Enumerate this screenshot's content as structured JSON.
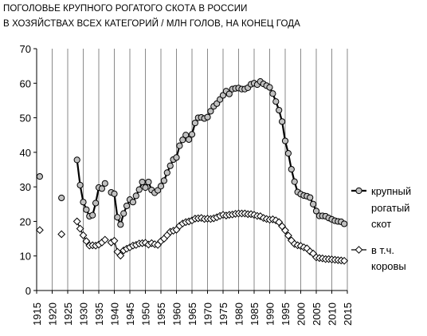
{
  "chart_data": {
    "type": "line",
    "title_lines": [
      "ПОГОЛОВЬЕ КРУПНОГО РОГАТОГО СКОТА В РОССИИ",
      "В ХОЗЯЙСТВАХ ВСЕХ  КАТЕГОРИЙ / МЛН ГОЛОВ, НА КОНЕЦ ГОДА"
    ],
    "xlabel": "",
    "ylabel": "",
    "xlim": [
      1915,
      2015
    ],
    "ylim": [
      0,
      70
    ],
    "x_ticks": [
      "1915",
      "1920",
      "1925",
      "1930",
      "1935",
      "1940",
      "1945",
      "1950",
      "1955",
      "1960",
      "1965",
      "1970",
      "1975",
      "1980",
      "1985",
      "1990",
      "1995",
      "2000",
      "2005",
      "2010",
      "2015"
    ],
    "y_ticks": [
      "0",
      "10",
      "20",
      "30",
      "40",
      "50",
      "60",
      "70"
    ],
    "grid": "vertical",
    "legend_position": "right",
    "series": [
      {
        "name_lines": [
          "крупный",
          "рогатый",
          "скот"
        ],
        "color": "#000000",
        "marker": "circle",
        "marker_fill": "#c0c0c0",
        "points": [
          [
            1916,
            33.0
          ],
          [
            1923,
            26.8
          ],
          [
            1928,
            37.8
          ],
          [
            1929,
            30.5
          ],
          [
            1930,
            25.6
          ],
          [
            1931,
            23.4
          ],
          [
            1932,
            21.5
          ],
          [
            1933,
            21.8
          ],
          [
            1934,
            25.3
          ],
          [
            1935,
            29.8
          ],
          [
            1936,
            29.5
          ],
          [
            1937,
            31.0
          ],
          [
            1939,
            28.4
          ],
          [
            1940,
            28.0
          ],
          [
            1941,
            21.2
          ],
          [
            1942,
            19.1
          ],
          [
            1943,
            22.3
          ],
          [
            1944,
            24.5
          ],
          [
            1945,
            26.3
          ],
          [
            1946,
            25.6
          ],
          [
            1947,
            27.4
          ],
          [
            1948,
            29.2
          ],
          [
            1949,
            31.4
          ],
          [
            1950,
            29.8
          ],
          [
            1951,
            31.4
          ],
          [
            1952,
            29.1
          ],
          [
            1953,
            28.3
          ],
          [
            1954,
            29.0
          ],
          [
            1955,
            30.2
          ],
          [
            1956,
            31.8
          ],
          [
            1957,
            34.1
          ],
          [
            1958,
            36.1
          ],
          [
            1959,
            37.9
          ],
          [
            1960,
            38.5
          ],
          [
            1961,
            41.9
          ],
          [
            1962,
            43.6
          ],
          [
            1963,
            45.0
          ],
          [
            1964,
            43.7
          ],
          [
            1965,
            45.2
          ],
          [
            1966,
            48.5
          ],
          [
            1967,
            50.0
          ],
          [
            1968,
            50.1
          ],
          [
            1969,
            49.8
          ],
          [
            1970,
            50.2
          ],
          [
            1971,
            51.9
          ],
          [
            1972,
            53.3
          ],
          [
            1973,
            54.1
          ],
          [
            1974,
            55.3
          ],
          [
            1975,
            56.5
          ],
          [
            1976,
            57.7
          ],
          [
            1977,
            56.9
          ],
          [
            1978,
            58.3
          ],
          [
            1979,
            58.5
          ],
          [
            1980,
            58.6
          ],
          [
            1981,
            58.3
          ],
          [
            1982,
            58.3
          ],
          [
            1983,
            58.7
          ],
          [
            1984,
            59.7
          ],
          [
            1985,
            60.0
          ],
          [
            1986,
            59.6
          ],
          [
            1987,
            60.5
          ],
          [
            1988,
            59.8
          ],
          [
            1989,
            59.3
          ],
          [
            1990,
            58.8
          ],
          [
            1991,
            57.0
          ],
          [
            1992,
            54.7
          ],
          [
            1993,
            52.2
          ],
          [
            1994,
            48.9
          ],
          [
            1995,
            43.3
          ],
          [
            1996,
            39.7
          ],
          [
            1997,
            35.1
          ],
          [
            1998,
            31.5
          ],
          [
            1999,
            28.5
          ],
          [
            2000,
            27.9
          ],
          [
            2001,
            27.5
          ],
          [
            2002,
            27.3
          ],
          [
            2003,
            26.9
          ],
          [
            2004,
            25.0
          ],
          [
            2005,
            23.0
          ],
          [
            2006,
            21.6
          ],
          [
            2007,
            21.6
          ],
          [
            2008,
            21.5
          ],
          [
            2009,
            21.0
          ],
          [
            2010,
            20.6
          ],
          [
            2011,
            20.2
          ],
          [
            2012,
            20.0
          ],
          [
            2013,
            19.9
          ],
          [
            2014,
            19.3
          ]
        ]
      },
      {
        "name_lines": [
          "в т.ч.",
          "коровы"
        ],
        "color": "#000000",
        "marker": "diamond",
        "marker_fill": "#ffffff",
        "points": [
          [
            1916,
            17.5
          ],
          [
            1923,
            16.3
          ],
          [
            1928,
            20.0
          ],
          [
            1929,
            17.9
          ],
          [
            1930,
            16.0
          ],
          [
            1931,
            14.3
          ],
          [
            1932,
            13.0
          ],
          [
            1933,
            13.1
          ],
          [
            1934,
            13.0
          ],
          [
            1935,
            13.3
          ],
          [
            1936,
            13.9
          ],
          [
            1937,
            14.7
          ],
          [
            1939,
            13.9
          ],
          [
            1940,
            14.4
          ],
          [
            1941,
            11.2
          ],
          [
            1942,
            10.1
          ],
          [
            1943,
            11.6
          ],
          [
            1944,
            12.1
          ],
          [
            1945,
            12.5
          ],
          [
            1946,
            13.0
          ],
          [
            1947,
            13.2
          ],
          [
            1948,
            13.6
          ],
          [
            1949,
            13.7
          ],
          [
            1950,
            13.8
          ],
          [
            1951,
            13.3
          ],
          [
            1952,
            13.7
          ],
          [
            1953,
            13.4
          ],
          [
            1954,
            13.2
          ],
          [
            1955,
            14.3
          ],
          [
            1956,
            15.0
          ],
          [
            1957,
            16.0
          ],
          [
            1958,
            17.0
          ],
          [
            1959,
            17.3
          ],
          [
            1960,
            17.6
          ],
          [
            1961,
            18.7
          ],
          [
            1962,
            19.4
          ],
          [
            1963,
            19.8
          ],
          [
            1964,
            20.0
          ],
          [
            1965,
            20.3
          ],
          [
            1966,
            20.8
          ],
          [
            1967,
            20.9
          ],
          [
            1968,
            21.0
          ],
          [
            1969,
            20.7
          ],
          [
            1970,
            20.8
          ],
          [
            1971,
            20.7
          ],
          [
            1972,
            20.9
          ],
          [
            1973,
            21.2
          ],
          [
            1974,
            21.6
          ],
          [
            1975,
            21.9
          ],
          [
            1976,
            21.7
          ],
          [
            1977,
            21.9
          ],
          [
            1978,
            22.0
          ],
          [
            1979,
            22.2
          ],
          [
            1980,
            22.3
          ],
          [
            1981,
            22.3
          ],
          [
            1982,
            22.3
          ],
          [
            1983,
            22.1
          ],
          [
            1984,
            22.1
          ],
          [
            1985,
            21.9
          ],
          [
            1986,
            21.6
          ],
          [
            1987,
            21.5
          ],
          [
            1988,
            21.0
          ],
          [
            1989,
            20.7
          ],
          [
            1990,
            20.5
          ],
          [
            1991,
            20.6
          ],
          [
            1992,
            20.3
          ],
          [
            1993,
            19.8
          ],
          [
            1994,
            18.6
          ],
          [
            1995,
            17.4
          ],
          [
            1996,
            15.9
          ],
          [
            1997,
            14.5
          ],
          [
            1998,
            13.5
          ],
          [
            1999,
            13.1
          ],
          [
            2000,
            12.9
          ],
          [
            2001,
            12.5
          ],
          [
            2002,
            12.2
          ],
          [
            2003,
            11.3
          ],
          [
            2004,
            10.7
          ],
          [
            2005,
            9.6
          ],
          [
            2006,
            9.4
          ],
          [
            2007,
            9.3
          ],
          [
            2008,
            9.1
          ],
          [
            2009,
            9.1
          ],
          [
            2010,
            9.0
          ],
          [
            2011,
            8.9
          ],
          [
            2012,
            8.8
          ],
          [
            2013,
            8.7
          ],
          [
            2014,
            8.6
          ]
        ]
      }
    ]
  }
}
